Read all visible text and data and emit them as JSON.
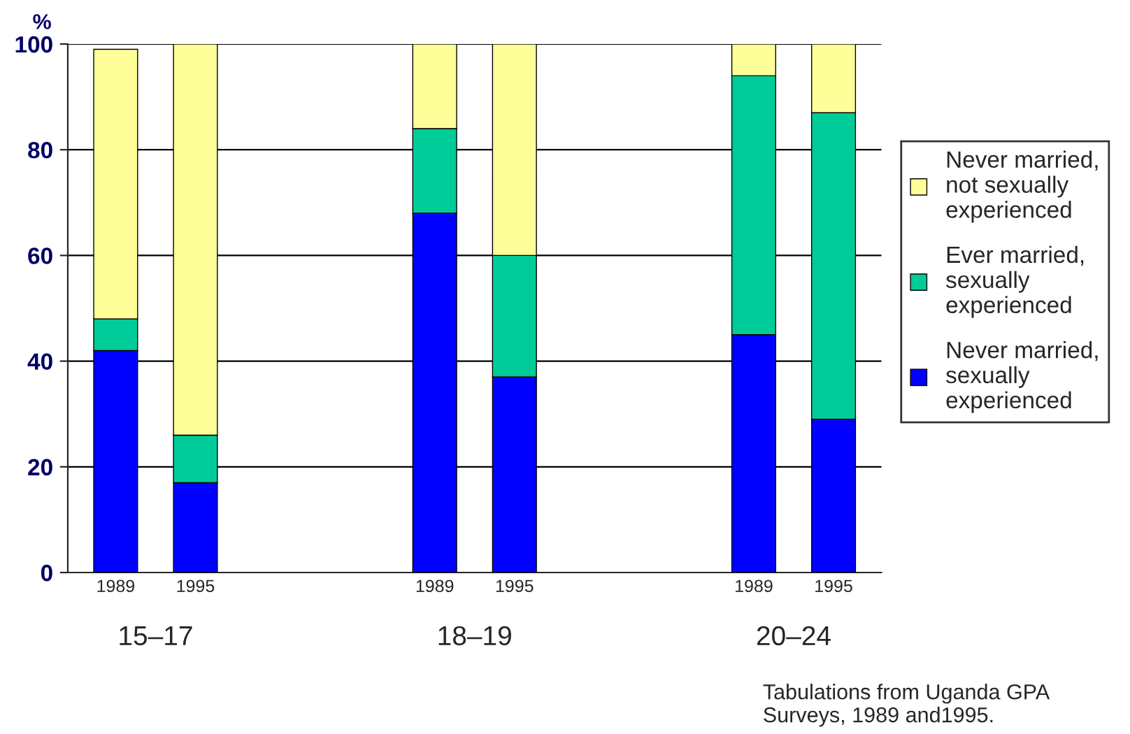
{
  "chart_data": {
    "type": "bar",
    "stacked": true,
    "ylabel": "%",
    "categories": [
      "1989",
      "1995",
      null,
      null,
      "1989",
      "1995",
      null,
      null,
      "1989",
      "1995"
    ],
    "series": [
      {
        "name": "Never married, sexually experienced",
        "color": "#0000ff",
        "values": [
          42,
          17,
          null,
          null,
          68,
          37,
          null,
          null,
          45,
          29
        ]
      },
      {
        "name": "Ever married, sexually experienced",
        "color": "#00cc99",
        "values": [
          6,
          9,
          null,
          null,
          16,
          23,
          null,
          null,
          49,
          58
        ]
      },
      {
        "name": "Never married, not sexually experienced",
        "color": "#ffff99",
        "values": [
          51,
          74,
          null,
          null,
          16,
          40,
          null,
          null,
          6,
          13
        ]
      }
    ],
    "ylim": [
      0,
      100
    ],
    "yticks": [
      0,
      20,
      40,
      60,
      80,
      100
    ],
    "grid": "y",
    "legend": "right",
    "annotations": [
      "15–17",
      "18–19",
      "20–24",
      "Tabulations from Uganda GPA Surveys, 1989 and1995."
    ]
  }
}
